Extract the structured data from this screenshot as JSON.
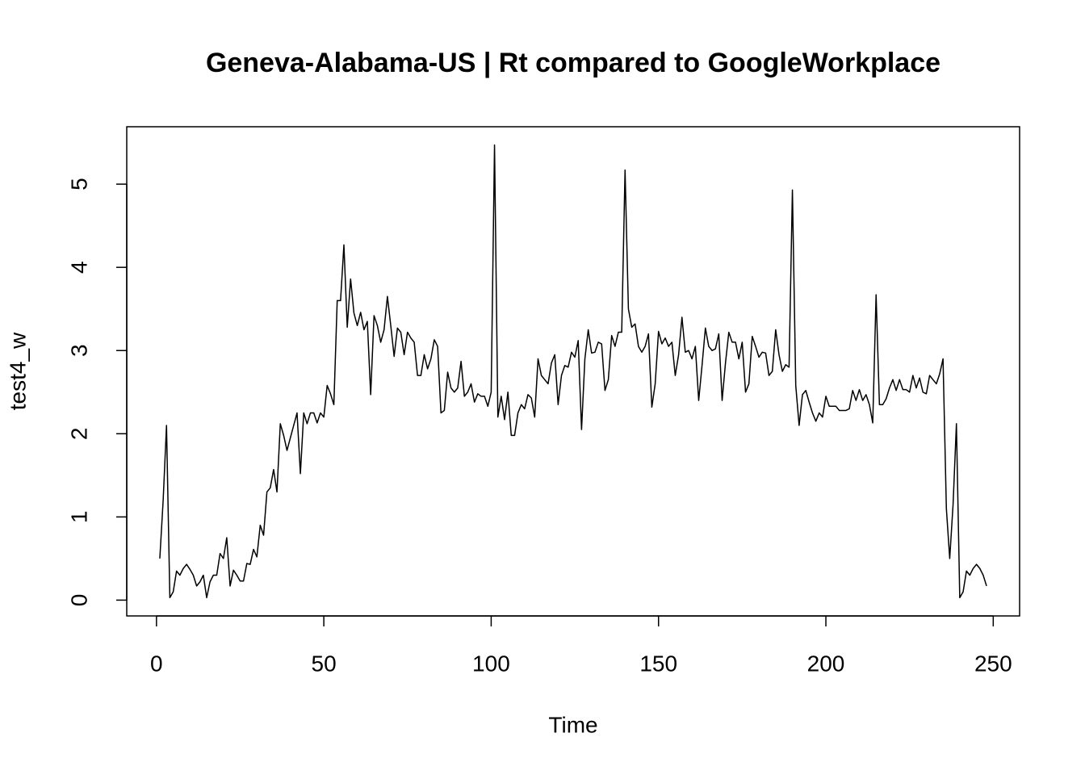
{
  "chart_data": {
    "type": "line",
    "title": "Geneva-Alabama-US | Rt compared to GoogleWorkplace",
    "xlabel": "Time",
    "ylabel": "test4_w",
    "color": "#000000",
    "x": [
      1,
      2,
      3,
      4,
      5,
      6,
      7,
      8,
      9,
      10,
      11,
      12,
      13,
      14,
      15,
      16,
      17,
      18,
      19,
      20,
      21,
      22,
      23,
      24,
      25,
      26,
      27,
      28,
      29,
      30,
      31,
      32,
      33,
      34,
      35,
      36,
      37,
      38,
      39,
      40,
      41,
      42,
      43,
      44,
      45,
      46,
      47,
      48,
      49,
      50,
      51,
      52,
      53,
      54,
      55,
      56,
      57,
      58,
      59,
      60,
      61,
      62,
      63,
      64,
      65,
      66,
      67,
      68,
      69,
      70,
      71,
      72,
      73,
      74,
      75,
      76,
      77,
      78,
      79,
      80,
      81,
      82,
      83,
      84,
      85,
      86,
      87,
      88,
      89,
      90,
      91,
      92,
      93,
      94,
      95,
      96,
      97,
      98,
      99,
      100,
      101,
      102,
      103,
      104,
      105,
      106,
      107,
      108,
      109,
      110,
      111,
      112,
      113,
      114,
      115,
      116,
      117,
      118,
      119,
      120,
      121,
      122,
      123,
      124,
      125,
      126,
      127,
      128,
      129,
      130,
      131,
      132,
      133,
      134,
      135,
      136,
      137,
      138,
      139,
      140,
      141,
      142,
      143,
      144,
      145,
      146,
      147,
      148,
      149,
      150,
      151,
      152,
      153,
      154,
      155,
      156,
      157,
      158,
      159,
      160,
      161,
      162,
      163,
      164,
      165,
      166,
      167,
      168,
      169,
      170,
      171,
      172,
      173,
      174,
      175,
      176,
      177,
      178,
      179,
      180,
      181,
      182,
      183,
      184,
      185,
      186,
      187,
      188,
      189,
      190,
      191,
      192,
      193,
      194,
      195,
      196,
      197,
      198,
      199,
      200,
      201,
      202,
      203,
      204,
      205,
      206,
      207,
      208,
      209,
      210,
      211,
      212,
      213,
      214,
      215,
      216,
      217,
      218,
      219,
      220,
      221,
      222,
      223,
      224,
      225,
      226,
      227,
      228,
      229,
      230,
      231,
      232,
      233,
      234,
      235,
      236,
      237,
      238,
      239,
      240,
      241,
      242,
      243,
      244,
      245,
      246,
      247,
      248
    ],
    "values": [
      0.5,
      1.2,
      2.1,
      0.03,
      0.1,
      0.35,
      0.3,
      0.38,
      0.43,
      0.37,
      0.3,
      0.17,
      0.22,
      0.3,
      0.03,
      0.22,
      0.3,
      0.3,
      0.56,
      0.5,
      0.75,
      0.17,
      0.36,
      0.3,
      0.23,
      0.23,
      0.44,
      0.43,
      0.61,
      0.52,
      0.9,
      0.78,
      1.3,
      1.35,
      1.57,
      1.3,
      2.12,
      1.98,
      1.8,
      1.95,
      2.1,
      2.25,
      1.52,
      2.25,
      2.12,
      2.25,
      2.25,
      2.13,
      2.25,
      2.2,
      2.58,
      2.48,
      2.35,
      3.6,
      3.6,
      4.27,
      3.28,
      3.86,
      3.45,
      3.3,
      3.46,
      3.25,
      3.35,
      2.47,
      3.42,
      3.3,
      3.1,
      3.25,
      3.65,
      3.3,
      2.93,
      3.27,
      3.22,
      2.95,
      3.22,
      3.15,
      3.1,
      2.7,
      2.7,
      2.95,
      2.78,
      2.9,
      3.13,
      3.05,
      2.25,
      2.28,
      2.74,
      2.55,
      2.5,
      2.55,
      2.87,
      2.45,
      2.5,
      2.6,
      2.38,
      2.48,
      2.45,
      2.45,
      2.33,
      2.5,
      5.47,
      2.2,
      2.45,
      2.17,
      2.5,
      1.98,
      1.98,
      2.25,
      2.35,
      2.3,
      2.47,
      2.43,
      2.2,
      2.9,
      2.7,
      2.65,
      2.6,
      2.85,
      2.95,
      2.35,
      2.7,
      2.82,
      2.8,
      2.98,
      2.92,
      3.12,
      2.05,
      2.9,
      3.25,
      2.97,
      2.98,
      3.1,
      3.08,
      2.52,
      2.65,
      3.18,
      3.05,
      3.22,
      3.22,
      5.17,
      3.5,
      3.28,
      3.32,
      3.05,
      2.98,
      3.05,
      3.2,
      2.32,
      2.6,
      3.23,
      3.08,
      3.15,
      3.05,
      3.1,
      2.7,
      2.95,
      3.4,
      2.98,
      3.0,
      2.9,
      3.05,
      2.4,
      2.82,
      3.27,
      3.05,
      3.0,
      3.02,
      3.2,
      2.4,
      2.85,
      3.22,
      3.1,
      3.1,
      2.9,
      3.1,
      2.5,
      2.6,
      3.17,
      3.05,
      2.92,
      2.98,
      2.97,
      2.7,
      2.75,
      3.25,
      2.95,
      2.75,
      2.83,
      2.8,
      4.93,
      2.58,
      2.1,
      2.47,
      2.52,
      2.38,
      2.25,
      2.15,
      2.25,
      2.2,
      2.45,
      2.33,
      2.33,
      2.33,
      2.28,
      2.28,
      2.28,
      2.3,
      2.52,
      2.4,
      2.53,
      2.4,
      2.47,
      2.35,
      2.13,
      3.67,
      2.35,
      2.35,
      2.42,
      2.55,
      2.65,
      2.52,
      2.65,
      2.53,
      2.53,
      2.5,
      2.7,
      2.55,
      2.67,
      2.5,
      2.48,
      2.7,
      2.65,
      2.6,
      2.72,
      2.9,
      1.1,
      0.5,
      1.15,
      2.12,
      0.03,
      0.1,
      0.35,
      0.3,
      0.38,
      0.43,
      0.38,
      0.3,
      0.17
    ],
    "xlim": [
      -8.88,
      257.88
    ],
    "xticks": [
      0,
      50,
      100,
      150,
      200,
      250
    ],
    "ylim": [
      -0.19,
      5.69
    ],
    "yticks": [
      0,
      1,
      2,
      3,
      4,
      5
    ]
  }
}
